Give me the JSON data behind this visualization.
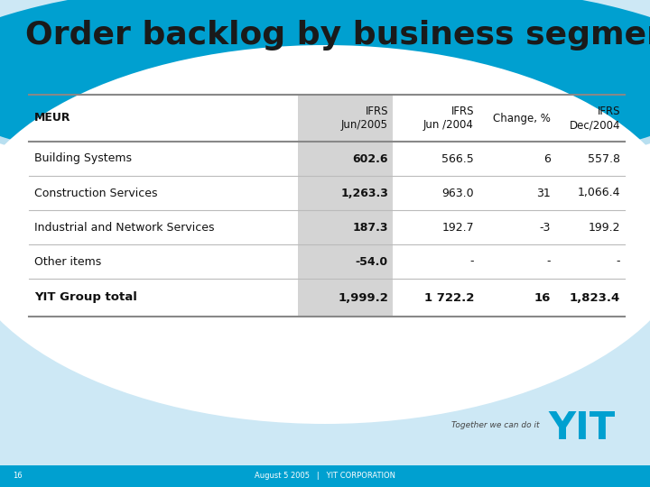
{
  "title": "Order backlog by business segment",
  "title_fontsize": 26,
  "title_color": "#1a1a1a",
  "bg_color": "#cde8f5",
  "col_headers": [
    "MEUR",
    "IFRS\nJun/2005",
    "IFRS\nJun /2004",
    "Change, %",
    "IFRS\nDec/2004"
  ],
  "rows": [
    [
      "Building Systems",
      "602.6",
      "566.5",
      "6",
      "557.8"
    ],
    [
      "Construction Services",
      "1,263.3",
      "963.0",
      "31",
      "1,066.4"
    ],
    [
      "Industrial and Network Services",
      "187.3",
      "192.7",
      "-3",
      "199.2"
    ],
    [
      "Other items",
      "-54.0",
      "-",
      "-",
      "-"
    ],
    [
      "YIT Group total",
      "1,999.2",
      "1 722.2",
      "16",
      "1,823.4"
    ]
  ],
  "bold_rows": [
    4
  ],
  "bold_cols": [
    1
  ],
  "footer_text": "August 5 2005   |   YIT CORPORATION",
  "page_num": "16",
  "tagline": "Together we can do it",
  "bottom_blue": "#00a0d0",
  "gray_col_color": "#d4d4d4",
  "line_dark": "#888888",
  "line_light": "#bbbbbb"
}
